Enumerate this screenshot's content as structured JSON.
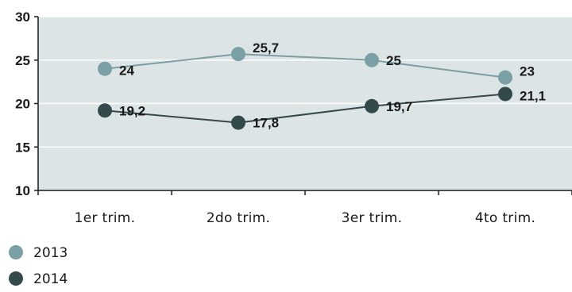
{
  "chart_data": {
    "type": "line",
    "categories": [
      "1er trim.",
      "2do trim.",
      "3er trim.",
      "4to trim."
    ],
    "series": [
      {
        "name": "2013",
        "values": [
          24,
          25.7,
          25,
          23
        ],
        "labels": [
          "24",
          "25,7",
          "25",
          "23"
        ],
        "color": "#7a9fa5"
      },
      {
        "name": "2014",
        "values": [
          19.2,
          17.8,
          19.7,
          21.1
        ],
        "labels": [
          "19,2",
          "17,8",
          "19,7",
          "21,1"
        ],
        "color": "#34494c"
      }
    ],
    "yticks": [
      10,
      15,
      20,
      25,
      30
    ],
    "ylim": [
      10,
      30
    ],
    "grid": true,
    "plot_background": "#dde4e6",
    "legend_position": "bottom-left"
  }
}
